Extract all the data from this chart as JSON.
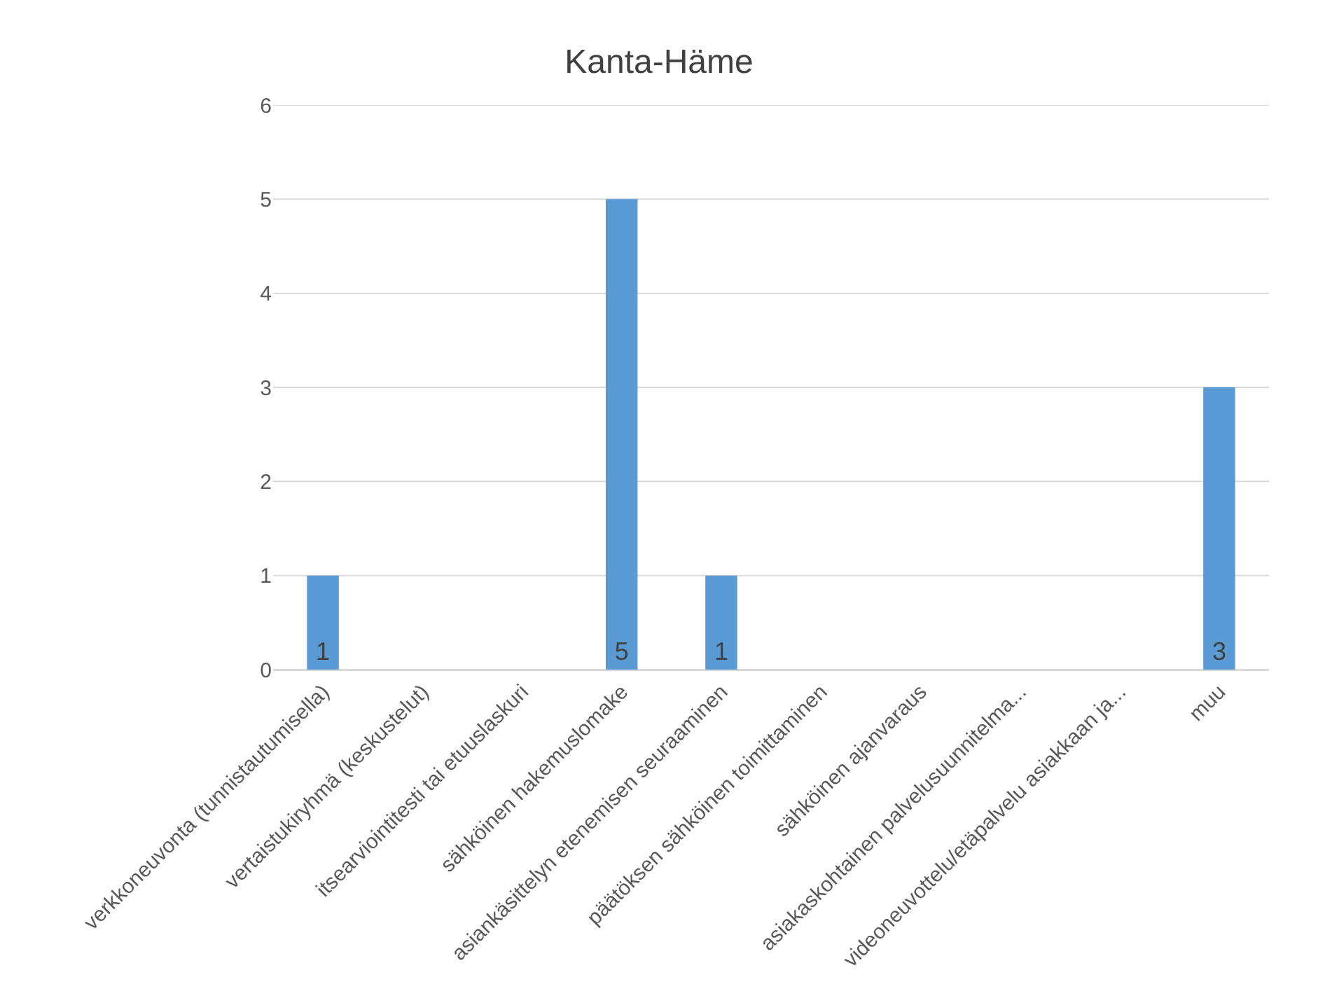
{
  "chart_data": {
    "type": "bar",
    "title": "Kanta-Häme",
    "categories": [
      "verkkoneuvonta (tunnistautumisella)",
      "vertaistukiryhmä (keskustelut)",
      "itsearviointitesti tai etuuslaskuri",
      "sähköinen hakemuslomake",
      "asiankäsittelyn etenemisen seuraaminen",
      "päätöksen sähköinen toimittaminen",
      "sähköinen ajanvaraus",
      "asiakaskohtainen palvelusuunnitelma...",
      "videoneuvottelu/etäpalvelu asiakkaan ja...",
      "muu"
    ],
    "values": [
      1,
      0,
      0,
      5,
      1,
      0,
      0,
      0,
      0,
      3
    ],
    "value_labels": [
      "1",
      null,
      null,
      "5",
      "1",
      null,
      null,
      null,
      null,
      "3"
    ],
    "color": "#5b9bd5",
    "ylim": [
      0,
      6
    ],
    "yticks": [
      0,
      1,
      2,
      3,
      4,
      5,
      6
    ],
    "grid": "y",
    "legend": false
  }
}
